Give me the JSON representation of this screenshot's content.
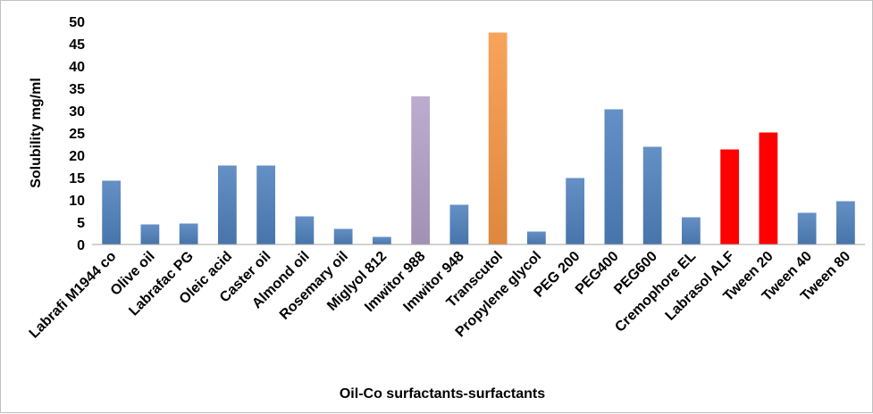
{
  "chart_data": {
    "type": "bar",
    "title": "",
    "xlabel": "Oil-Co surfactants-surfactants",
    "ylabel": "Solubility mg/ml",
    "ylim": [
      0,
      50
    ],
    "yticks": [
      0,
      5,
      10,
      15,
      20,
      25,
      30,
      35,
      40,
      45,
      50
    ],
    "grid": false,
    "legend": "none",
    "categories": [
      "Labrafi M1944 co",
      "Olive oil",
      "Labrafac PG",
      "Oleic acid",
      "Caster oil",
      "Almond oil",
      "Rosemary oil",
      "Miglyol 812",
      "Imwitor 988",
      "Imwitor 948",
      "Transcutol",
      "Propylene glycol",
      "PEG 200",
      "PEG400",
      "PEG600",
      "Cremophore EL",
      "Labrasol ALF",
      "Tween 20",
      "Tween 40",
      "Tween 80"
    ],
    "values": [
      14.3,
      4.5,
      4.7,
      17.7,
      17.7,
      6.3,
      3.5,
      1.7,
      33.2,
      8.9,
      47.5,
      2.9,
      14.9,
      30.3,
      21.9,
      6.1,
      21.3,
      25.1,
      7.1,
      9.7
    ],
    "bar_colors": [
      "#4f81bd",
      "#4f81bd",
      "#4f81bd",
      "#4f81bd",
      "#4f81bd",
      "#4f81bd",
      "#4f81bd",
      "#4f81bd",
      "#b3a2c7",
      "#4f81bd",
      "#f79646",
      "#4f81bd",
      "#4f81bd",
      "#4f81bd",
      "#4f81bd",
      "#4f81bd",
      "#ff0000",
      "#ff0000",
      "#4f81bd",
      "#4f81bd"
    ]
  }
}
